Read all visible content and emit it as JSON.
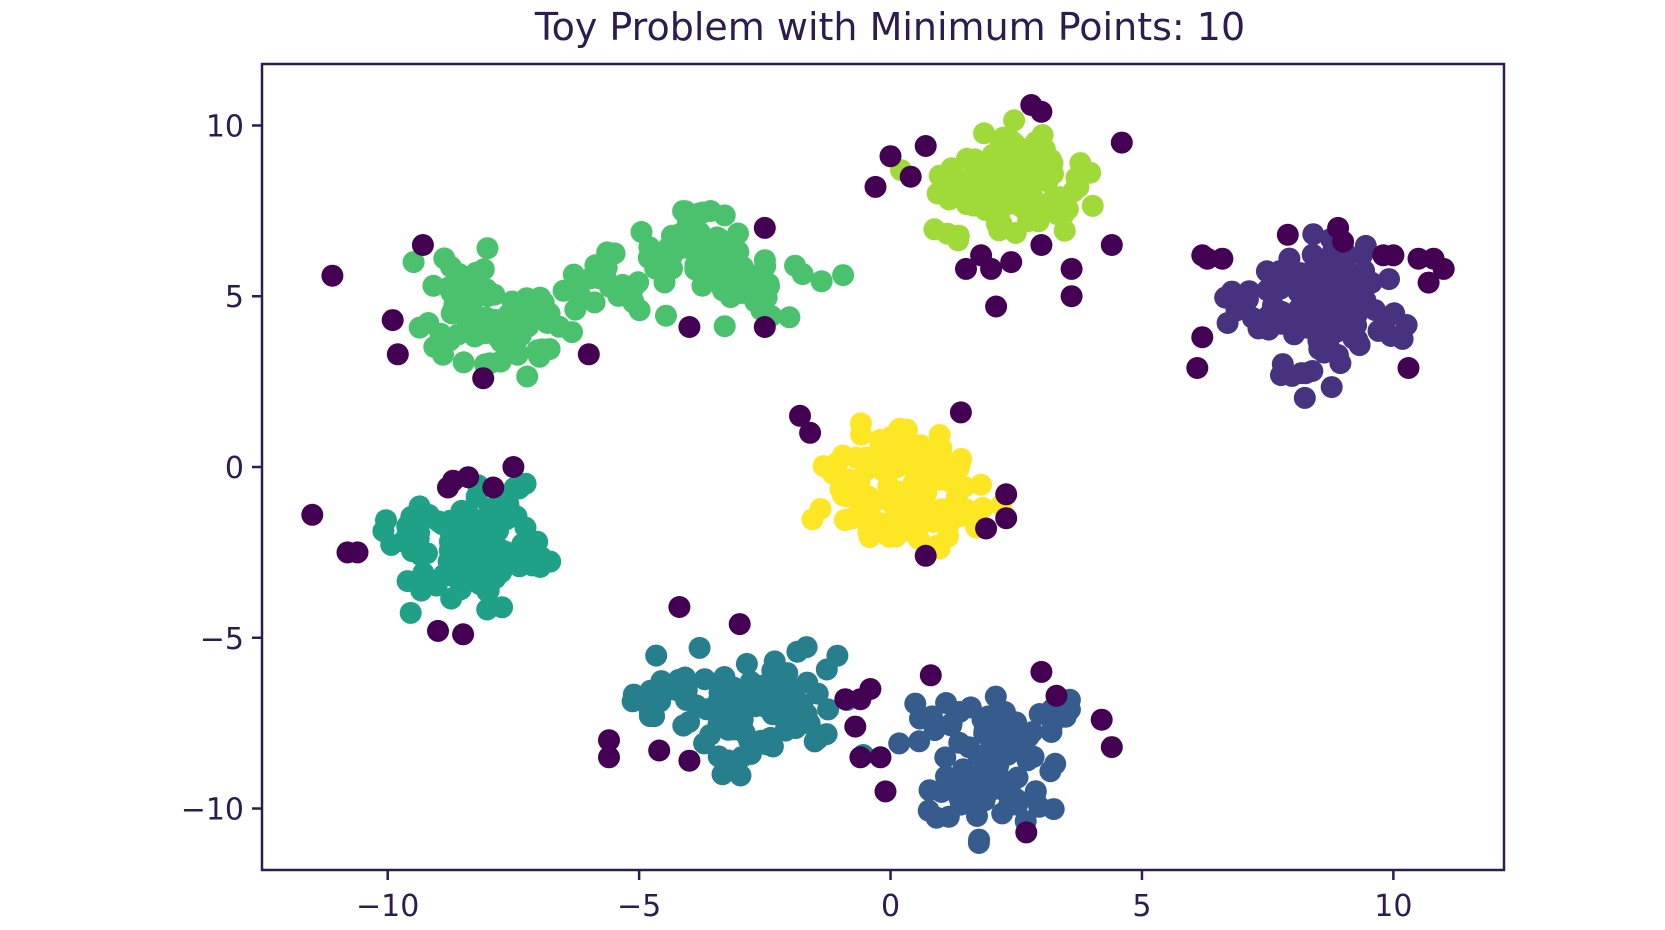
{
  "chart_data": {
    "type": "scatter",
    "title": "Toy Problem with Minimum Points: 10",
    "xlabel": "",
    "ylabel": "",
    "xlim": [
      -12.5,
      12.2
    ],
    "ylim": [
      -11.8,
      11.8
    ],
    "xticks": [
      -10,
      -5,
      0,
      5,
      10
    ],
    "yticks": [
      10,
      5,
      0,
      -5,
      -10
    ],
    "xtick_labels": [
      "−10",
      "−5",
      "0",
      "5",
      "10"
    ],
    "ytick_labels": [
      "10",
      "5",
      "0",
      "−5",
      "−10"
    ],
    "grid": false,
    "legend": null,
    "colormap": "viridis",
    "series": [
      {
        "cluster": "noise",
        "color": "#440154",
        "points": [
          [
            -11.1,
            5.6
          ],
          [
            -9.9,
            4.3
          ],
          [
            -9.8,
            3.3
          ],
          [
            -9.3,
            6.5
          ],
          [
            -8.1,
            2.6
          ],
          [
            -6.0,
            3.3
          ],
          [
            -4.0,
            4.1
          ],
          [
            -2.5,
            7.0
          ],
          [
            -2.5,
            4.1
          ],
          [
            -11.5,
            -1.4
          ],
          [
            -10.8,
            -2.5
          ],
          [
            -10.6,
            -2.5
          ],
          [
            -8.8,
            -0.6
          ],
          [
            -8.7,
            -0.4
          ],
          [
            -8.4,
            -0.3
          ],
          [
            -7.9,
            -0.6
          ],
          [
            -7.5,
            0.0
          ],
          [
            -9.0,
            -4.8
          ],
          [
            -8.5,
            -4.9
          ],
          [
            -1.8,
            1.5
          ],
          [
            -1.6,
            1.0
          ],
          [
            1.4,
            1.6
          ],
          [
            2.3,
            -0.8
          ],
          [
            2.3,
            -1.5
          ],
          [
            1.9,
            -1.8
          ],
          [
            0.7,
            -2.6
          ],
          [
            -4.2,
            -4.1
          ],
          [
            -3.0,
            -4.6
          ],
          [
            -5.6,
            -8.0
          ],
          [
            -5.6,
            -8.5
          ],
          [
            -4.6,
            -8.3
          ],
          [
            -4.0,
            -8.6
          ],
          [
            -0.9,
            -6.8
          ],
          [
            -0.6,
            -6.8
          ],
          [
            -0.4,
            -6.5
          ],
          [
            -0.7,
            -7.6
          ],
          [
            -0.6,
            -8.5
          ],
          [
            -0.2,
            -8.5
          ],
          [
            -0.1,
            -9.5
          ],
          [
            0.8,
            -6.1
          ],
          [
            3.0,
            -6.0
          ],
          [
            3.3,
            -6.7
          ],
          [
            4.2,
            -7.4
          ],
          [
            4.4,
            -8.2
          ],
          [
            2.7,
            -10.7
          ],
          [
            -0.3,
            8.2
          ],
          [
            -0.0,
            9.1
          ],
          [
            0.4,
            8.5
          ],
          [
            0.7,
            9.4
          ],
          [
            2.8,
            10.6
          ],
          [
            3.0,
            10.4
          ],
          [
            4.6,
            9.5
          ],
          [
            1.5,
            5.8
          ],
          [
            1.8,
            6.2
          ],
          [
            2.0,
            5.8
          ],
          [
            2.4,
            6.0
          ],
          [
            2.1,
            4.7
          ],
          [
            3.0,
            6.5
          ],
          [
            3.6,
            5.8
          ],
          [
            3.6,
            5.0
          ],
          [
            4.4,
            6.5
          ],
          [
            6.2,
            6.2
          ],
          [
            6.3,
            6.1
          ],
          [
            6.6,
            6.1
          ],
          [
            6.2,
            3.8
          ],
          [
            6.1,
            2.9
          ],
          [
            7.9,
            6.8
          ],
          [
            8.9,
            7.0
          ],
          [
            9.0,
            6.6
          ],
          [
            9.8,
            6.2
          ],
          [
            10.0,
            6.2
          ],
          [
            10.5,
            6.1
          ],
          [
            10.8,
            6.1
          ],
          [
            11.0,
            5.8
          ],
          [
            10.7,
            5.4
          ],
          [
            10.3,
            2.9
          ]
        ]
      },
      {
        "cluster": "1",
        "color": "#46327e",
        "centers": [
          [
            8.6,
            4.7
          ],
          [
            7.7,
            5.0
          ],
          [
            9.5,
            4.2
          ],
          [
            8.4,
            3.4
          ],
          [
            8.8,
            5.8
          ]
        ],
        "spread": 0.75,
        "count": 110
      },
      {
        "cluster": "2",
        "color": "#365c8d",
        "centers": [
          [
            2.0,
            -8.7
          ],
          [
            1.3,
            -7.5
          ],
          [
            2.8,
            -7.6
          ],
          [
            1.5,
            -9.6
          ],
          [
            2.3,
            -9.8
          ]
        ],
        "spread": 0.75,
        "count": 100
      },
      {
        "cluster": "3",
        "color": "#277f8e",
        "centers": [
          [
            -3.2,
            -7.0
          ],
          [
            -4.3,
            -6.6
          ],
          [
            -2.2,
            -6.5
          ],
          [
            -3.0,
            -7.8
          ],
          [
            -1.8,
            -7.0
          ]
        ],
        "spread": 0.8,
        "count": 110
      },
      {
        "cluster": "4",
        "color": "#1fa187",
        "centers": [
          [
            -8.3,
            -2.4
          ],
          [
            -9.3,
            -2.0
          ],
          [
            -7.4,
            -2.8
          ],
          [
            -8.0,
            -1.3
          ],
          [
            -8.5,
            -3.3
          ]
        ],
        "spread": 0.75,
        "count": 105
      },
      {
        "cluster": "5",
        "color": "#4ac16d",
        "centers": [
          [
            -8.2,
            4.6
          ],
          [
            -7.3,
            4.4
          ],
          [
            -5.8,
            5.0
          ],
          [
            -4.5,
            5.7
          ],
          [
            -3.3,
            5.9
          ],
          [
            -2.6,
            5.2
          ],
          [
            -3.8,
            6.7
          ],
          [
            -8.6,
            5.4
          ],
          [
            -7.6,
            3.6
          ]
        ],
        "spread": 0.75,
        "count": 190
      },
      {
        "cluster": "6",
        "color": "#a0da39",
        "centers": [
          [
            2.2,
            8.4
          ],
          [
            1.4,
            8.2
          ],
          [
            3.0,
            8.9
          ],
          [
            2.0,
            7.5
          ],
          [
            3.3,
            7.8
          ],
          [
            2.5,
            9.3
          ]
        ],
        "spread": 0.65,
        "count": 110
      },
      {
        "cluster": "7",
        "color": "#fde725",
        "centers": [
          [
            0.0,
            -0.6
          ],
          [
            -0.9,
            -0.2
          ],
          [
            0.9,
            -0.3
          ],
          [
            0.2,
            -1.4
          ],
          [
            0.4,
            0.6
          ],
          [
            -0.6,
            -1.5
          ],
          [
            1.2,
            -1.3
          ]
        ],
        "spread": 0.7,
        "count": 120
      }
    ]
  }
}
